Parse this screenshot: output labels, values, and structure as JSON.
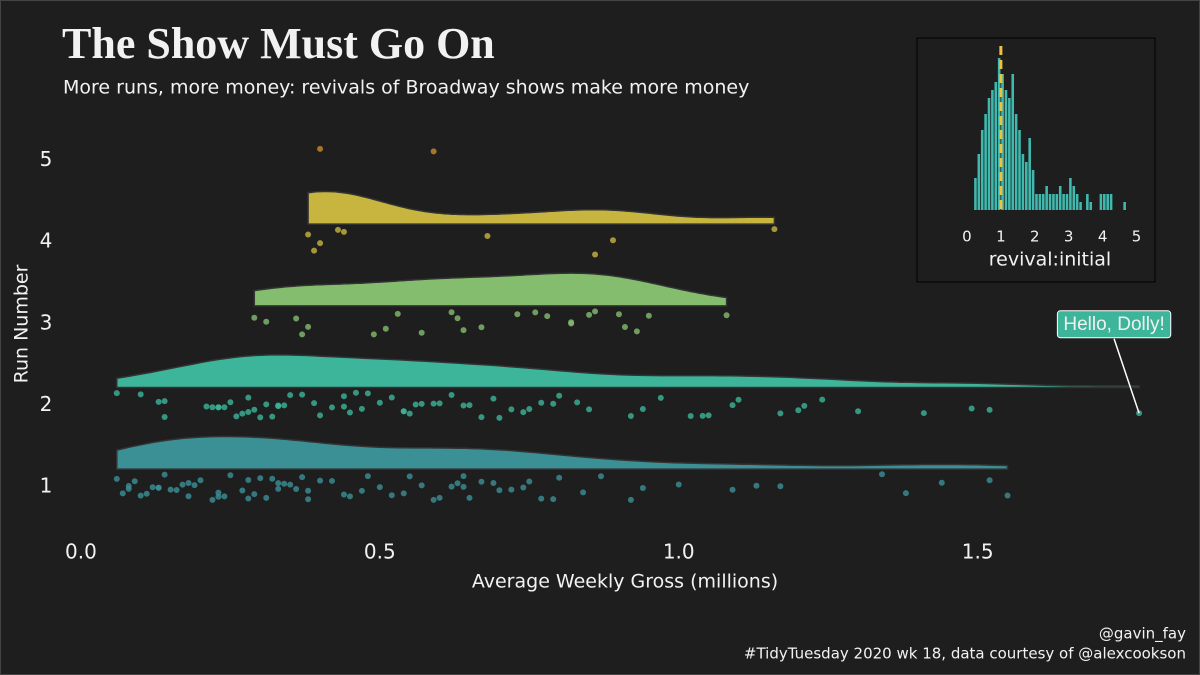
{
  "chart_data": [
    {
      "type": "raincloud",
      "title": "The Show Must Go On",
      "subtitle": "More runs, more money: revivals of Broadway shows make more money",
      "xlabel": "Average Weekly Gross (millions)",
      "ylabel": "Run Number",
      "xlim": [
        -0.035,
        1.8
      ],
      "xticks": [
        {
          "value": 0,
          "label": "0.0"
        },
        {
          "value": 0.5,
          "label": "0.5"
        },
        {
          "value": 1,
          "label": "1.0"
        },
        {
          "value": 1.5,
          "label": "1.5"
        }
      ],
      "ylim": [
        0.5,
        5.25
      ],
      "yticks": [
        1,
        2,
        3,
        4,
        5
      ],
      "series": [
        {
          "y": 1,
          "color": "#3b9096",
          "values": [
            0.06,
            0.07,
            0.08,
            0.08,
            0.09,
            0.1,
            0.11,
            0.12,
            0.13,
            0.13,
            0.14,
            0.15,
            0.16,
            0.17,
            0.18,
            0.18,
            0.19,
            0.2,
            0.22,
            0.23,
            0.23,
            0.24,
            0.25,
            0.27,
            0.28,
            0.28,
            0.29,
            0.3,
            0.31,
            0.32,
            0.33,
            0.33,
            0.34,
            0.35,
            0.36,
            0.37,
            0.38,
            0.38,
            0.4,
            0.42,
            0.44,
            0.45,
            0.47,
            0.48,
            0.5,
            0.52,
            0.54,
            0.55,
            0.57,
            0.59,
            0.6,
            0.62,
            0.63,
            0.64,
            0.64,
            0.65,
            0.67,
            0.69,
            0.7,
            0.72,
            0.74,
            0.75,
            0.77,
            0.79,
            0.8,
            0.84,
            0.87,
            0.92,
            0.94,
            1.0,
            1.09,
            1.13,
            1.17,
            1.34,
            1.38,
            1.44,
            1.52,
            1.55
          ]
        },
        {
          "y": 2,
          "color": "#3cb59a",
          "values": [
            0.06,
            0.1,
            0.13,
            0.14,
            0.14,
            0.21,
            0.22,
            0.23,
            0.23,
            0.24,
            0.25,
            0.26,
            0.27,
            0.28,
            0.28,
            0.29,
            0.3,
            0.31,
            0.32,
            0.33,
            0.33,
            0.34,
            0.35,
            0.37,
            0.39,
            0.4,
            0.42,
            0.44,
            0.44,
            0.45,
            0.46,
            0.47,
            0.48,
            0.5,
            0.52,
            0.54,
            0.54,
            0.55,
            0.56,
            0.57,
            0.59,
            0.6,
            0.62,
            0.64,
            0.65,
            0.67,
            0.69,
            0.7,
            0.72,
            0.74,
            0.75,
            0.77,
            0.79,
            0.8,
            0.83,
            0.85,
            0.92,
            0.94,
            0.97,
            1.02,
            1.04,
            1.05,
            1.09,
            1.1,
            1.17,
            1.2,
            1.21,
            1.24,
            1.3,
            1.41,
            1.49,
            1.52,
            1.77
          ]
        },
        {
          "y": 3,
          "color": "#85bd6f",
          "values": [
            0.29,
            0.31,
            0.36,
            0.37,
            0.38,
            0.49,
            0.51,
            0.53,
            0.57,
            0.62,
            0.63,
            0.64,
            0.67,
            0.73,
            0.76,
            0.78,
            0.82,
            0.82,
            0.85,
            0.86,
            0.9,
            0.91,
            0.93,
            0.95,
            1.08
          ]
        },
        {
          "y": 4,
          "color": "#c7b540",
          "values": [
            0.38,
            0.39,
            0.4,
            0.43,
            0.44,
            0.68,
            0.86,
            0.89,
            1.16
          ]
        },
        {
          "y": 5,
          "color": "#c98a2a",
          "values": [
            0.4,
            0.59
          ]
        }
      ],
      "annotation": "Hello, Dolly!",
      "caption": [
        "@gavin_fay",
        "#TidyTuesday 2020 wk 18, data courtesy of @alexcookson"
      ]
    },
    {
      "type": "histogram",
      "xlabel": "revival:initial",
      "color": "#3fb8ad",
      "bins": [
        0.2,
        0.3,
        0.4,
        0.5,
        0.6,
        0.7,
        0.8,
        0.9,
        1.0,
        1.1,
        1.2,
        1.3,
        1.4,
        1.5,
        1.6,
        1.7,
        1.8,
        1.9,
        2.0,
        2.1,
        2.2,
        2.3,
        2.4,
        2.5,
        2.6,
        2.7,
        2.8,
        2.9,
        3.0,
        3.1,
        3.2,
        3.3,
        3.4,
        3.5,
        3.6,
        3.7,
        3.8,
        3.9,
        4.0,
        4.1,
        4.2,
        4.3,
        4.4,
        4.5,
        4.6,
        4.7
      ],
      "values": [
        4,
        7,
        10,
        12,
        14,
        15,
        16,
        19,
        17,
        15,
        14,
        17,
        12,
        10,
        7,
        6,
        9,
        5,
        2,
        2,
        2,
        3,
        2,
        2,
        2,
        3,
        2,
        2,
        4,
        3,
        2,
        1,
        0,
        2,
        1,
        0,
        0,
        2,
        2,
        2,
        2,
        0,
        0,
        0,
        1
      ],
      "xlim": [
        -0.5,
        5.25
      ],
      "xticks": [
        0,
        1,
        2,
        3,
        4,
        5
      ],
      "ylim": [
        0,
        20
      ],
      "vline": 1,
      "vline_color": "#f0c040"
    }
  ]
}
